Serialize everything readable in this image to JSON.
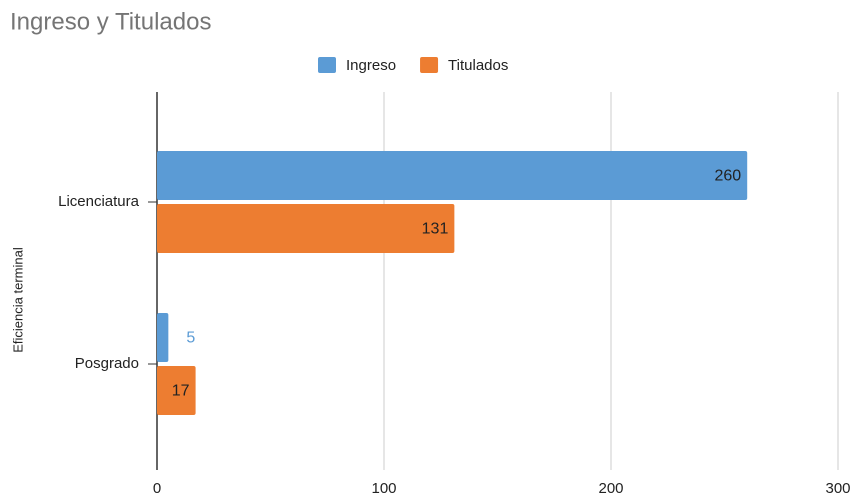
{
  "chart_data": {
    "type": "bar",
    "orientation": "horizontal",
    "title": "Ingreso y Titulados",
    "y_axis_label": "Eficiencia terminal",
    "categories": [
      "Licenciatura",
      "Posgrado"
    ],
    "series": [
      {
        "name": "Ingreso",
        "color": "#5b9bd5",
        "values": [
          260,
          5
        ]
      },
      {
        "name": "Titulados",
        "color": "#ed7d31",
        "values": [
          131,
          17
        ]
      }
    ],
    "xlim": [
      0,
      300
    ],
    "xticks": [
      0,
      100,
      200,
      300
    ],
    "grid": true,
    "legend": "top"
  }
}
